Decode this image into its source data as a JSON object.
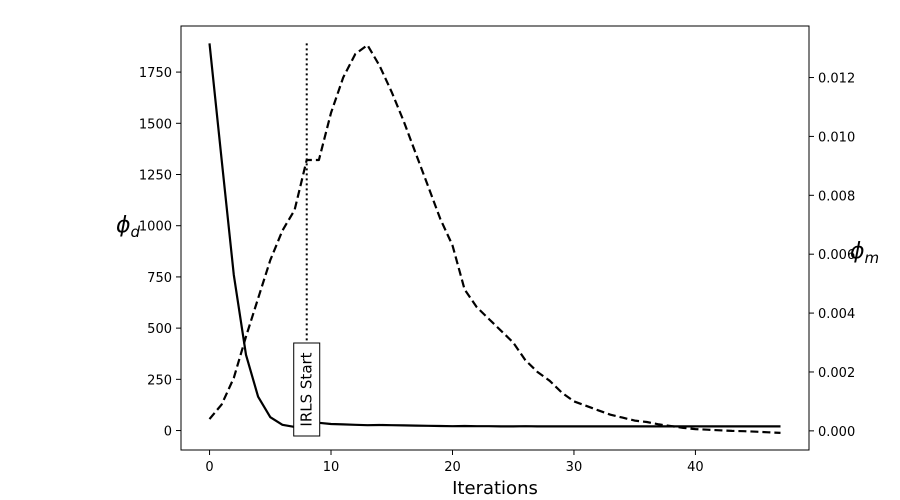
{
  "chart_data": {
    "type": "line",
    "xlabel": "Iterations",
    "ylabel_left": "ϕ_d",
    "ylabel_right": "ϕ_m",
    "xlim": [
      -2.35,
      49.35
    ],
    "ylim_left": [
      -95,
      1975
    ],
    "ylim_right": [
      -0.00065,
      0.01375
    ],
    "x_ticks": [
      0,
      10,
      20,
      30,
      40
    ],
    "y_ticks_left": [
      0,
      250,
      500,
      750,
      1000,
      1250,
      1500,
      1750
    ],
    "y_ticks_right": [
      0.0,
      0.002,
      0.004,
      0.006,
      0.008,
      0.01,
      0.012
    ],
    "y_tick_labels_right": [
      "0.000",
      "0.002",
      "0.004",
      "0.006",
      "0.008",
      "0.010",
      "0.012"
    ],
    "series": [
      {
        "axis": "left",
        "style": "solid",
        "x": [
          0,
          1,
          2,
          3,
          4,
          5,
          6,
          7,
          8,
          9,
          10,
          11,
          12,
          13,
          14,
          15,
          16,
          17,
          18,
          19,
          20,
          21,
          22,
          23,
          24,
          25,
          26,
          27,
          28,
          29,
          30,
          31,
          32,
          33,
          34,
          35,
          36,
          37,
          38,
          39,
          40,
          41,
          42,
          43,
          44,
          45,
          46,
          47
        ],
        "values": [
          1890,
          1320,
          760,
          370,
          165,
          65,
          28,
          18,
          45,
          38,
          32,
          30,
          28,
          26,
          27,
          26,
          25,
          24,
          23,
          22,
          21,
          22,
          21,
          21,
          20,
          20,
          21,
          20,
          20,
          20,
          20,
          20,
          20,
          20,
          20,
          20,
          20,
          20,
          20,
          20,
          20,
          20,
          20,
          20,
          20,
          20,
          20,
          20
        ]
      },
      {
        "axis": "right",
        "style": "dashed",
        "x": [
          0,
          1,
          2,
          3,
          4,
          5,
          6,
          7,
          8,
          9,
          10,
          11,
          12,
          13,
          14,
          15,
          16,
          17,
          18,
          19,
          20,
          21,
          22,
          23,
          24,
          25,
          26,
          27,
          28,
          29,
          30,
          31,
          32,
          33,
          34,
          35,
          36,
          37,
          38,
          39,
          40,
          41,
          42,
          43,
          44,
          45,
          46,
          47
        ],
        "values": [
          0.0004,
          0.0009,
          0.0018,
          0.0032,
          0.0045,
          0.0058,
          0.0068,
          0.0075,
          0.0092,
          0.0092,
          0.0108,
          0.012,
          0.0128,
          0.0131,
          0.0124,
          0.0115,
          0.0105,
          0.0094,
          0.0083,
          0.0072,
          0.0063,
          0.0048,
          0.0042,
          0.0038,
          0.0034,
          0.003,
          0.0024,
          0.002,
          0.0017,
          0.0013,
          0.001,
          0.00085,
          0.0007,
          0.00055,
          0.00045,
          0.00035,
          0.0003,
          0.00022,
          0.00016,
          0.0001,
          6e-05,
          4e-05,
          2e-05,
          0.0,
          -1e-05,
          -3e-05,
          -5e-05,
          -7e-05
        ]
      }
    ],
    "annotation": {
      "text": "IRLS Start",
      "x": 8,
      "y_bottom_left": 0,
      "y_top_left": 1890,
      "line_style": "dotted"
    }
  }
}
